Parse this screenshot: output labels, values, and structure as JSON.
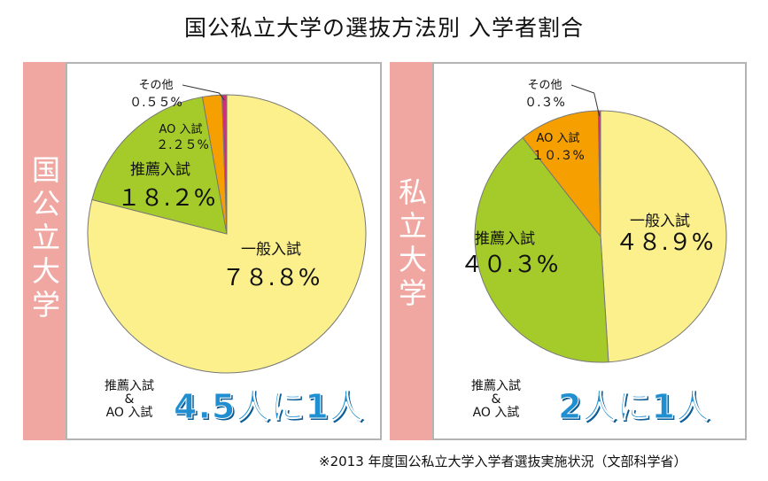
{
  "title": "国公私立大学の選抜方法別 入学者割合",
  "footnote": "※2013 年度国公私立大学入学者選抜実施状況（文部科学省）",
  "chart_data": [
    {
      "type": "pie",
      "panel_label": "国公立大学",
      "slices": [
        {
          "label": "一般入試",
          "value_text": "７８.８%",
          "value": 78.8,
          "color": "#fbf08c"
        },
        {
          "label": "推薦入試",
          "value_text": "１８.２%",
          "value": 18.2,
          "color": "#a5cb2b"
        },
        {
          "label": "AO 入試",
          "value_text": "２.２５%",
          "value": 2.25,
          "color": "#f5a000"
        },
        {
          "label": "その他",
          "value_text": "０.５５%",
          "value": 0.55,
          "color": "#cf2f7f"
        }
      ],
      "ratio_condition": [
        "推薦入試",
        "&",
        "AO 入試"
      ],
      "ratio_text": "4.5人に1人"
    },
    {
      "type": "pie",
      "panel_label": "私立大学",
      "slices": [
        {
          "label": "一般入試",
          "value_text": "４８.９%",
          "value": 48.9,
          "color": "#fbf08c"
        },
        {
          "label": "推薦入試",
          "value_text": "４０.３%",
          "value": 40.3,
          "color": "#a5cb2b"
        },
        {
          "label": "AO 入試",
          "value_text": "１０.３%",
          "value": 10.3,
          "color": "#f5a000"
        },
        {
          "label": "その他",
          "value_text": "０.３%",
          "value": 0.3,
          "color": "#cf2f7f"
        }
      ],
      "ratio_condition": [
        "推薦入試",
        "&",
        "AO 入試"
      ],
      "ratio_text": "2人に1人"
    }
  ]
}
